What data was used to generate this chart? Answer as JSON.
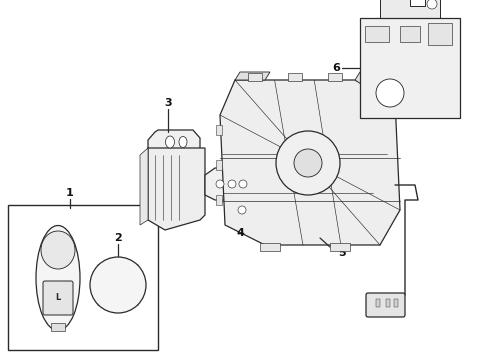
{
  "bg_color": "#ffffff",
  "line_color": "#2a2a2a",
  "label_color": "#111111",
  "fig_w": 4.9,
  "fig_h": 3.6,
  "dpi": 100
}
